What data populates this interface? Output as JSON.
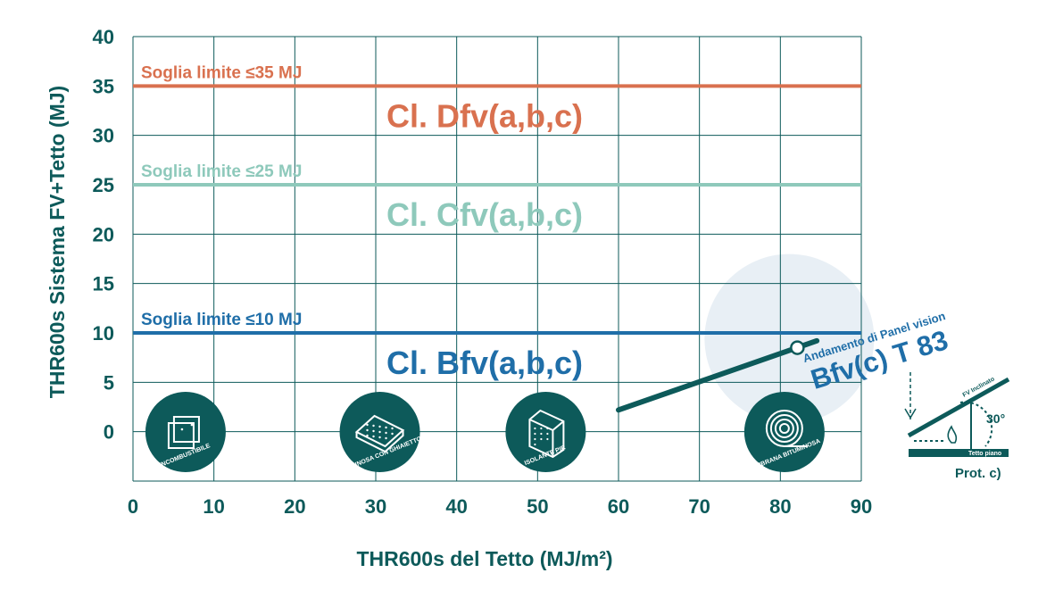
{
  "chart_data": {
    "type": "line",
    "xlabel": "THR600s del Tetto (MJ/m²)",
    "ylabel": "THR600s Sistema FV+Tetto (MJ)",
    "xlim": [
      0,
      90
    ],
    "ylim": [
      -5,
      40
    ],
    "x_ticks": [
      "0",
      "10",
      "20",
      "30",
      "40",
      "50",
      "60",
      "70",
      "80",
      "90"
    ],
    "y_ticks": [
      "40",
      "35",
      "30",
      "25",
      "20",
      "15",
      "10",
      "5",
      "0"
    ],
    "grid": true,
    "thresholds": [
      {
        "value": 35,
        "label": "Soglia limite ≤35 MJ",
        "class_label": "Cl. Dfv(a,b,c)",
        "color": "#d9714f"
      },
      {
        "value": 25,
        "label": "Soglia limite ≤25 MJ",
        "class_label": "Cl. Cfv(a,b,c)",
        "color": "#8ec9bb"
      },
      {
        "value": 10,
        "label": "Soglia limite ≤10 MJ",
        "class_label": "Cl. Bfv(a,b,c)",
        "color": "#1f6ea8"
      }
    ],
    "series": [
      {
        "label": "Andamento di Panel vision",
        "color": "#0d5a5a",
        "points": [
          [
            60,
            2.2
          ],
          [
            84.5,
            9.2
          ]
        ],
        "highlight_point": [
          82.1,
          8.5
        ]
      }
    ],
    "annotation": {
      "subtitle": "Andamento di Panel vision",
      "title": "Bfv(c) T 83",
      "color": "#1f6ea8"
    },
    "roof_types": [
      {
        "label": "INCOMBUSTIBILE",
        "icon": "board-icon",
        "x": 6.5
      },
      {
        "label": "BITUMINOSA CON GHIAIETTO",
        "icon": "gravel-slab-icon",
        "x": 30.5
      },
      {
        "label": "ISOLANTE PIR",
        "icon": "insulation-block-icon",
        "x": 51
      },
      {
        "label": "MEMBRANA BITUMINOSA",
        "icon": "membrane-roll-icon",
        "x": 80.5
      }
    ],
    "inset": {
      "label_pv": "FV Inclinato",
      "label_roof": "Tetto piano",
      "angle": "30°",
      "caption": "Prot. c)"
    }
  },
  "colors": {
    "axis": "#0d5a5a",
    "grid": "#0d5a5a",
    "icon_fill": "#0d5a5a",
    "halo": "#e8eff5"
  }
}
